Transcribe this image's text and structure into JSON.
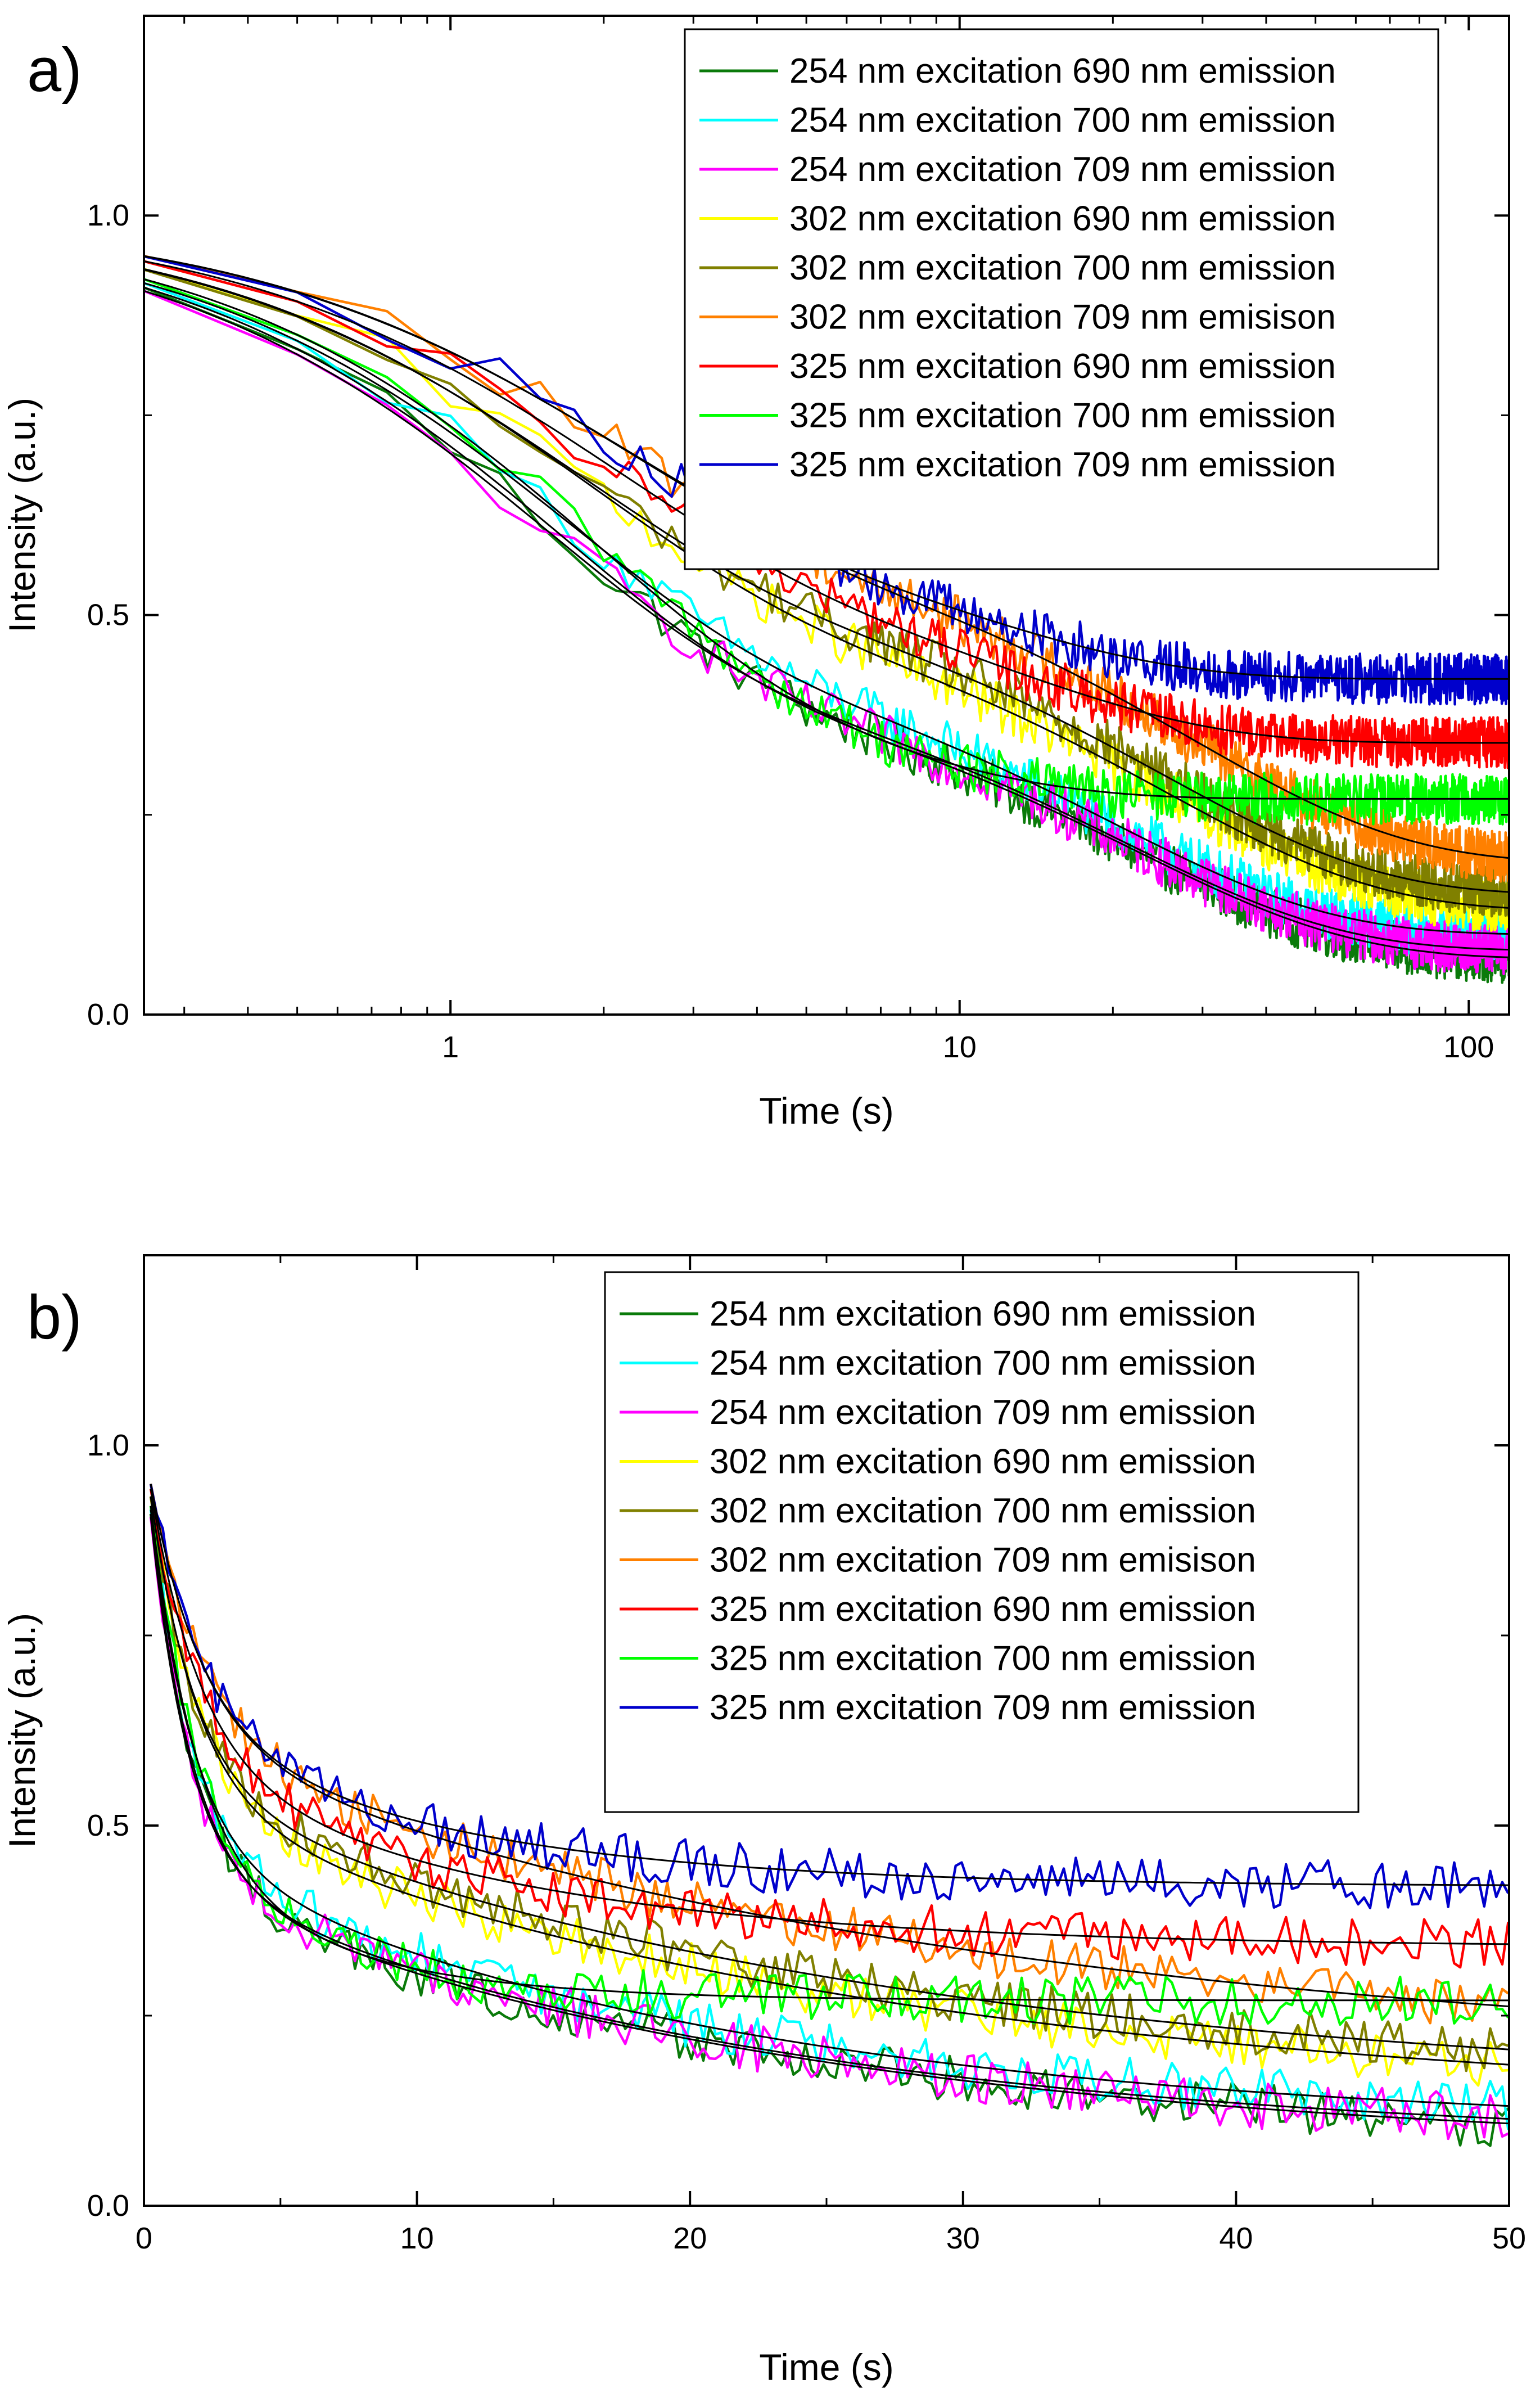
{
  "chart_data": [
    {
      "panel_label": "a)",
      "type": "line",
      "xscale": "log",
      "xlabel": "Time (s)",
      "ylabel": "Intensity (a.u.)",
      "xlim": [
        0.25,
        120
      ],
      "ylim": [
        0.0,
        1.25
      ],
      "xticks": [
        1,
        10,
        100
      ],
      "xtick_labels": [
        "1",
        "10",
        "100"
      ],
      "yticks": [
        0.0,
        0.5,
        1.0
      ],
      "ytick_labels": [
        "0.0",
        "0.5",
        "1.0"
      ],
      "grid": false,
      "legend": "top-right",
      "fit_color": "#000000"
    },
    {
      "panel_label": "b)",
      "type": "line",
      "xscale": "linear",
      "xlabel": "Time (s)",
      "ylabel": "Intensity (a.u.)",
      "xlim": [
        0,
        50
      ],
      "ylim": [
        0.0,
        1.25
      ],
      "xticks": [
        0,
        10,
        20,
        30,
        40,
        50
      ],
      "xtick_labels": [
        "0",
        "10",
        "20",
        "30",
        "40",
        "50"
      ],
      "yticks": [
        0.0,
        0.5,
        1.0
      ],
      "ytick_labels": [
        "0.0",
        "0.5",
        "1.0"
      ],
      "grid": false,
      "legend": "top-right",
      "fit_color": "#000000"
    }
  ],
  "series": [
    {
      "name": "254 nm excitation 690 nm emission",
      "color": "#0a7a0a",
      "model": {
        "start": 1.0,
        "plateau": 0.07,
        "fast_amp": 0.56,
        "fast_tau": 1.5,
        "slow_tau": 22
      }
    },
    {
      "name": "254 nm excitation 700 nm emission",
      "color": "#00ffff",
      "model": {
        "start": 1.0,
        "plateau": 0.1,
        "fast_amp": 0.52,
        "fast_tau": 1.5,
        "slow_tau": 20
      }
    },
    {
      "name": "254 nm excitation 709 nm emission",
      "color": "#ff00ff",
      "model": {
        "start": 1.0,
        "plateau": 0.08,
        "fast_amp": 0.55,
        "fast_tau": 1.4,
        "slow_tau": 21
      }
    },
    {
      "name": "302 nm excitation 690 nm emission",
      "color": "#ffff00",
      "model": {
        "start": 1.0,
        "plateau": 0.13,
        "fast_amp": 0.46,
        "fast_tau": 1.7,
        "slow_tau": 25
      }
    },
    {
      "name": "302 nm excitation 700 nm emission",
      "color": "#808000",
      "model": {
        "start": 1.0,
        "plateau": 0.15,
        "fast_amp": 0.44,
        "fast_tau": 1.6,
        "slow_tau": 25
      }
    },
    {
      "name": "302 nm excitation 709 nm emisison",
      "color": "#ff8000",
      "model": {
        "start": 1.0,
        "plateau": 0.19,
        "fast_amp": 0.38,
        "fast_tau": 1.9,
        "slow_tau": 28
      }
    },
    {
      "name": "325 nm excitation 690 nm emission",
      "color": "#ff0000",
      "model": {
        "start": 1.0,
        "plateau": 0.34,
        "fast_amp": 0.4,
        "fast_tau": 1.8,
        "slow_tau": 12
      }
    },
    {
      "name": "325 nm excitation 700 nm emission",
      "color": "#00ff00",
      "model": {
        "start": 1.0,
        "plateau": 0.27,
        "fast_amp": 0.52,
        "fast_tau": 1.7,
        "slow_tau": 6
      }
    },
    {
      "name": "325 nm excitation 709 nm emission",
      "color": "#0000cc",
      "model": {
        "start": 1.0,
        "plateau": 0.42,
        "fast_amp": 0.35,
        "fast_tau": 1.8,
        "slow_tau": 10
      }
    }
  ]
}
